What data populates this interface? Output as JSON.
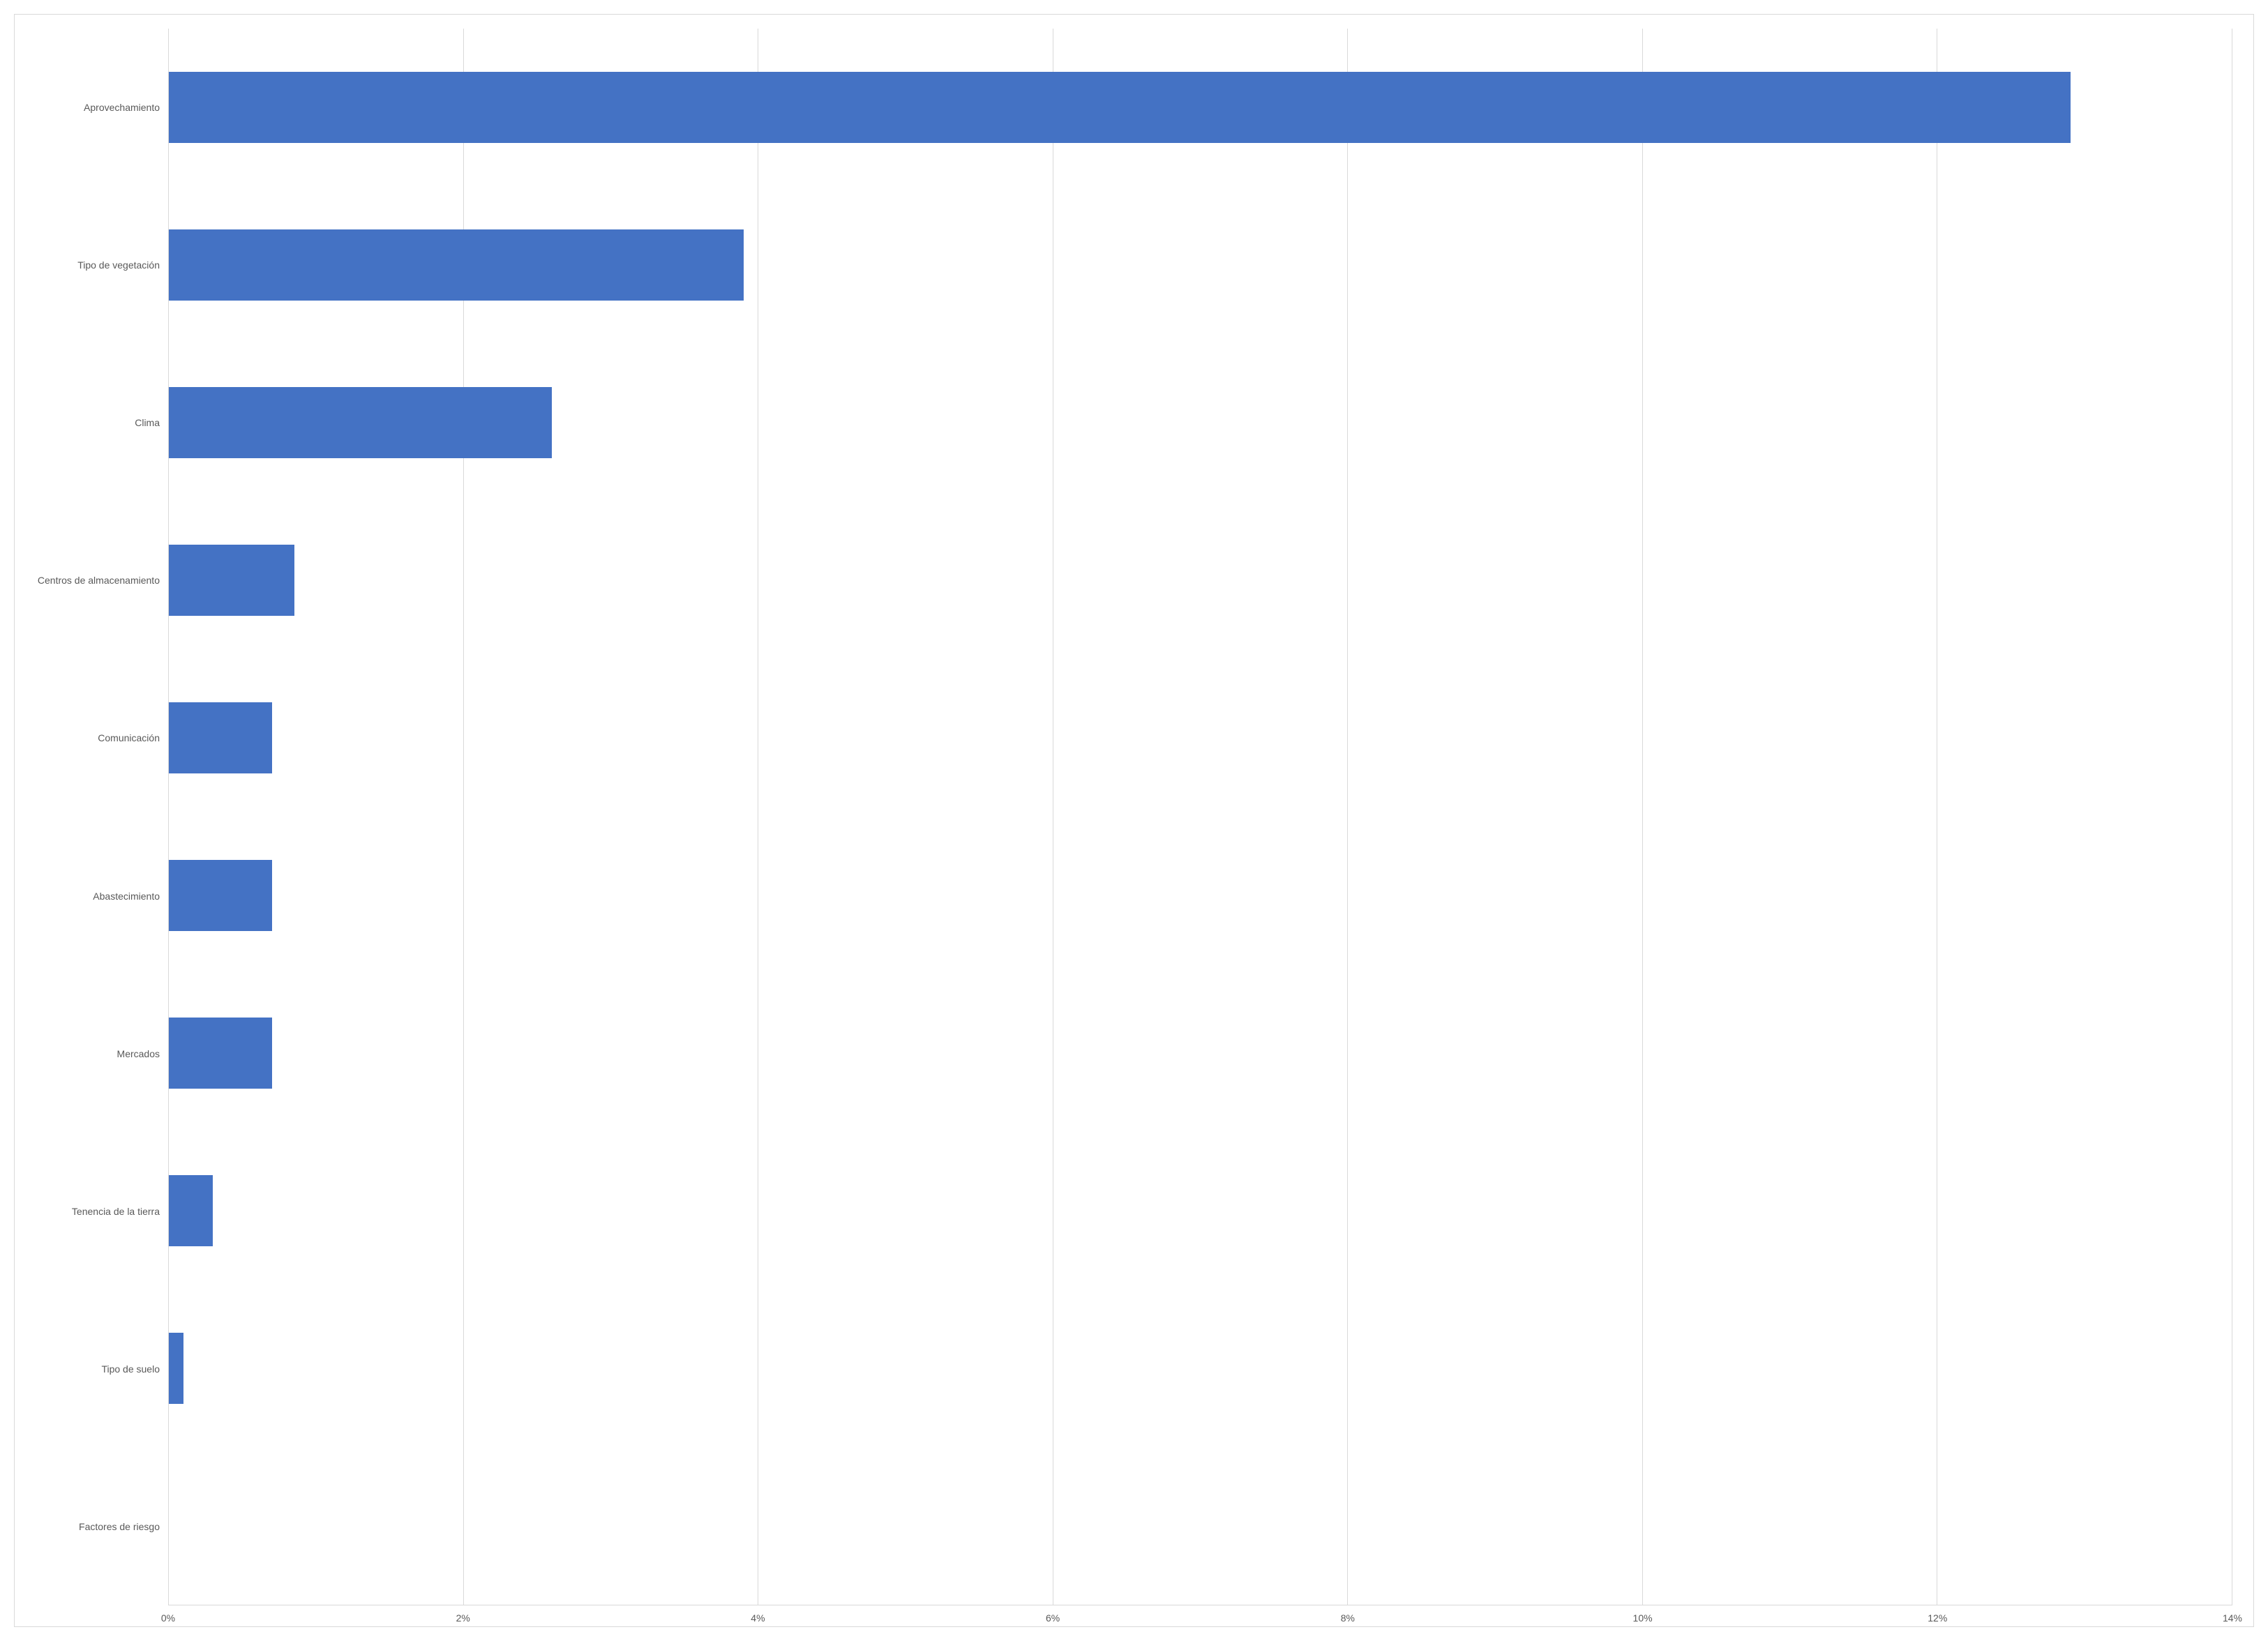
{
  "chart": {
    "type": "bar-horizontal",
    "background_color": "#ffffff",
    "border_color": "#d9d9d9",
    "grid_color": "#d9d9d9",
    "bar_color": "#4472c4",
    "text_color": "#595959",
    "label_fontsize": 14,
    "xlim": [
      0,
      14
    ],
    "xtick_step": 2,
    "xticks": [
      {
        "pos": 0,
        "label": "0%"
      },
      {
        "pos": 2,
        "label": "2%"
      },
      {
        "pos": 4,
        "label": "4%"
      },
      {
        "pos": 6,
        "label": "6%"
      },
      {
        "pos": 8,
        "label": "8%"
      },
      {
        "pos": 10,
        "label": "10%"
      },
      {
        "pos": 12,
        "label": "12%"
      },
      {
        "pos": 14,
        "label": "14%"
      }
    ],
    "categories": [
      {
        "label": "Aprovechamiento",
        "value": 12.9
      },
      {
        "label": "Tipo de vegetación",
        "value": 3.9
      },
      {
        "label": "Clima",
        "value": 2.6
      },
      {
        "label": "Centros de almacenamiento",
        "value": 0.85
      },
      {
        "label": "Comunicación",
        "value": 0.7
      },
      {
        "label": "Abastecimiento",
        "value": 0.7
      },
      {
        "label": "Mercados",
        "value": 0.7
      },
      {
        "label": "Tenencia de la tierra",
        "value": 0.3
      },
      {
        "label": "Tipo de suelo",
        "value": 0.1
      },
      {
        "label": "Factores de riesgo",
        "value": 0.0
      }
    ],
    "bar_width": 0.45
  }
}
